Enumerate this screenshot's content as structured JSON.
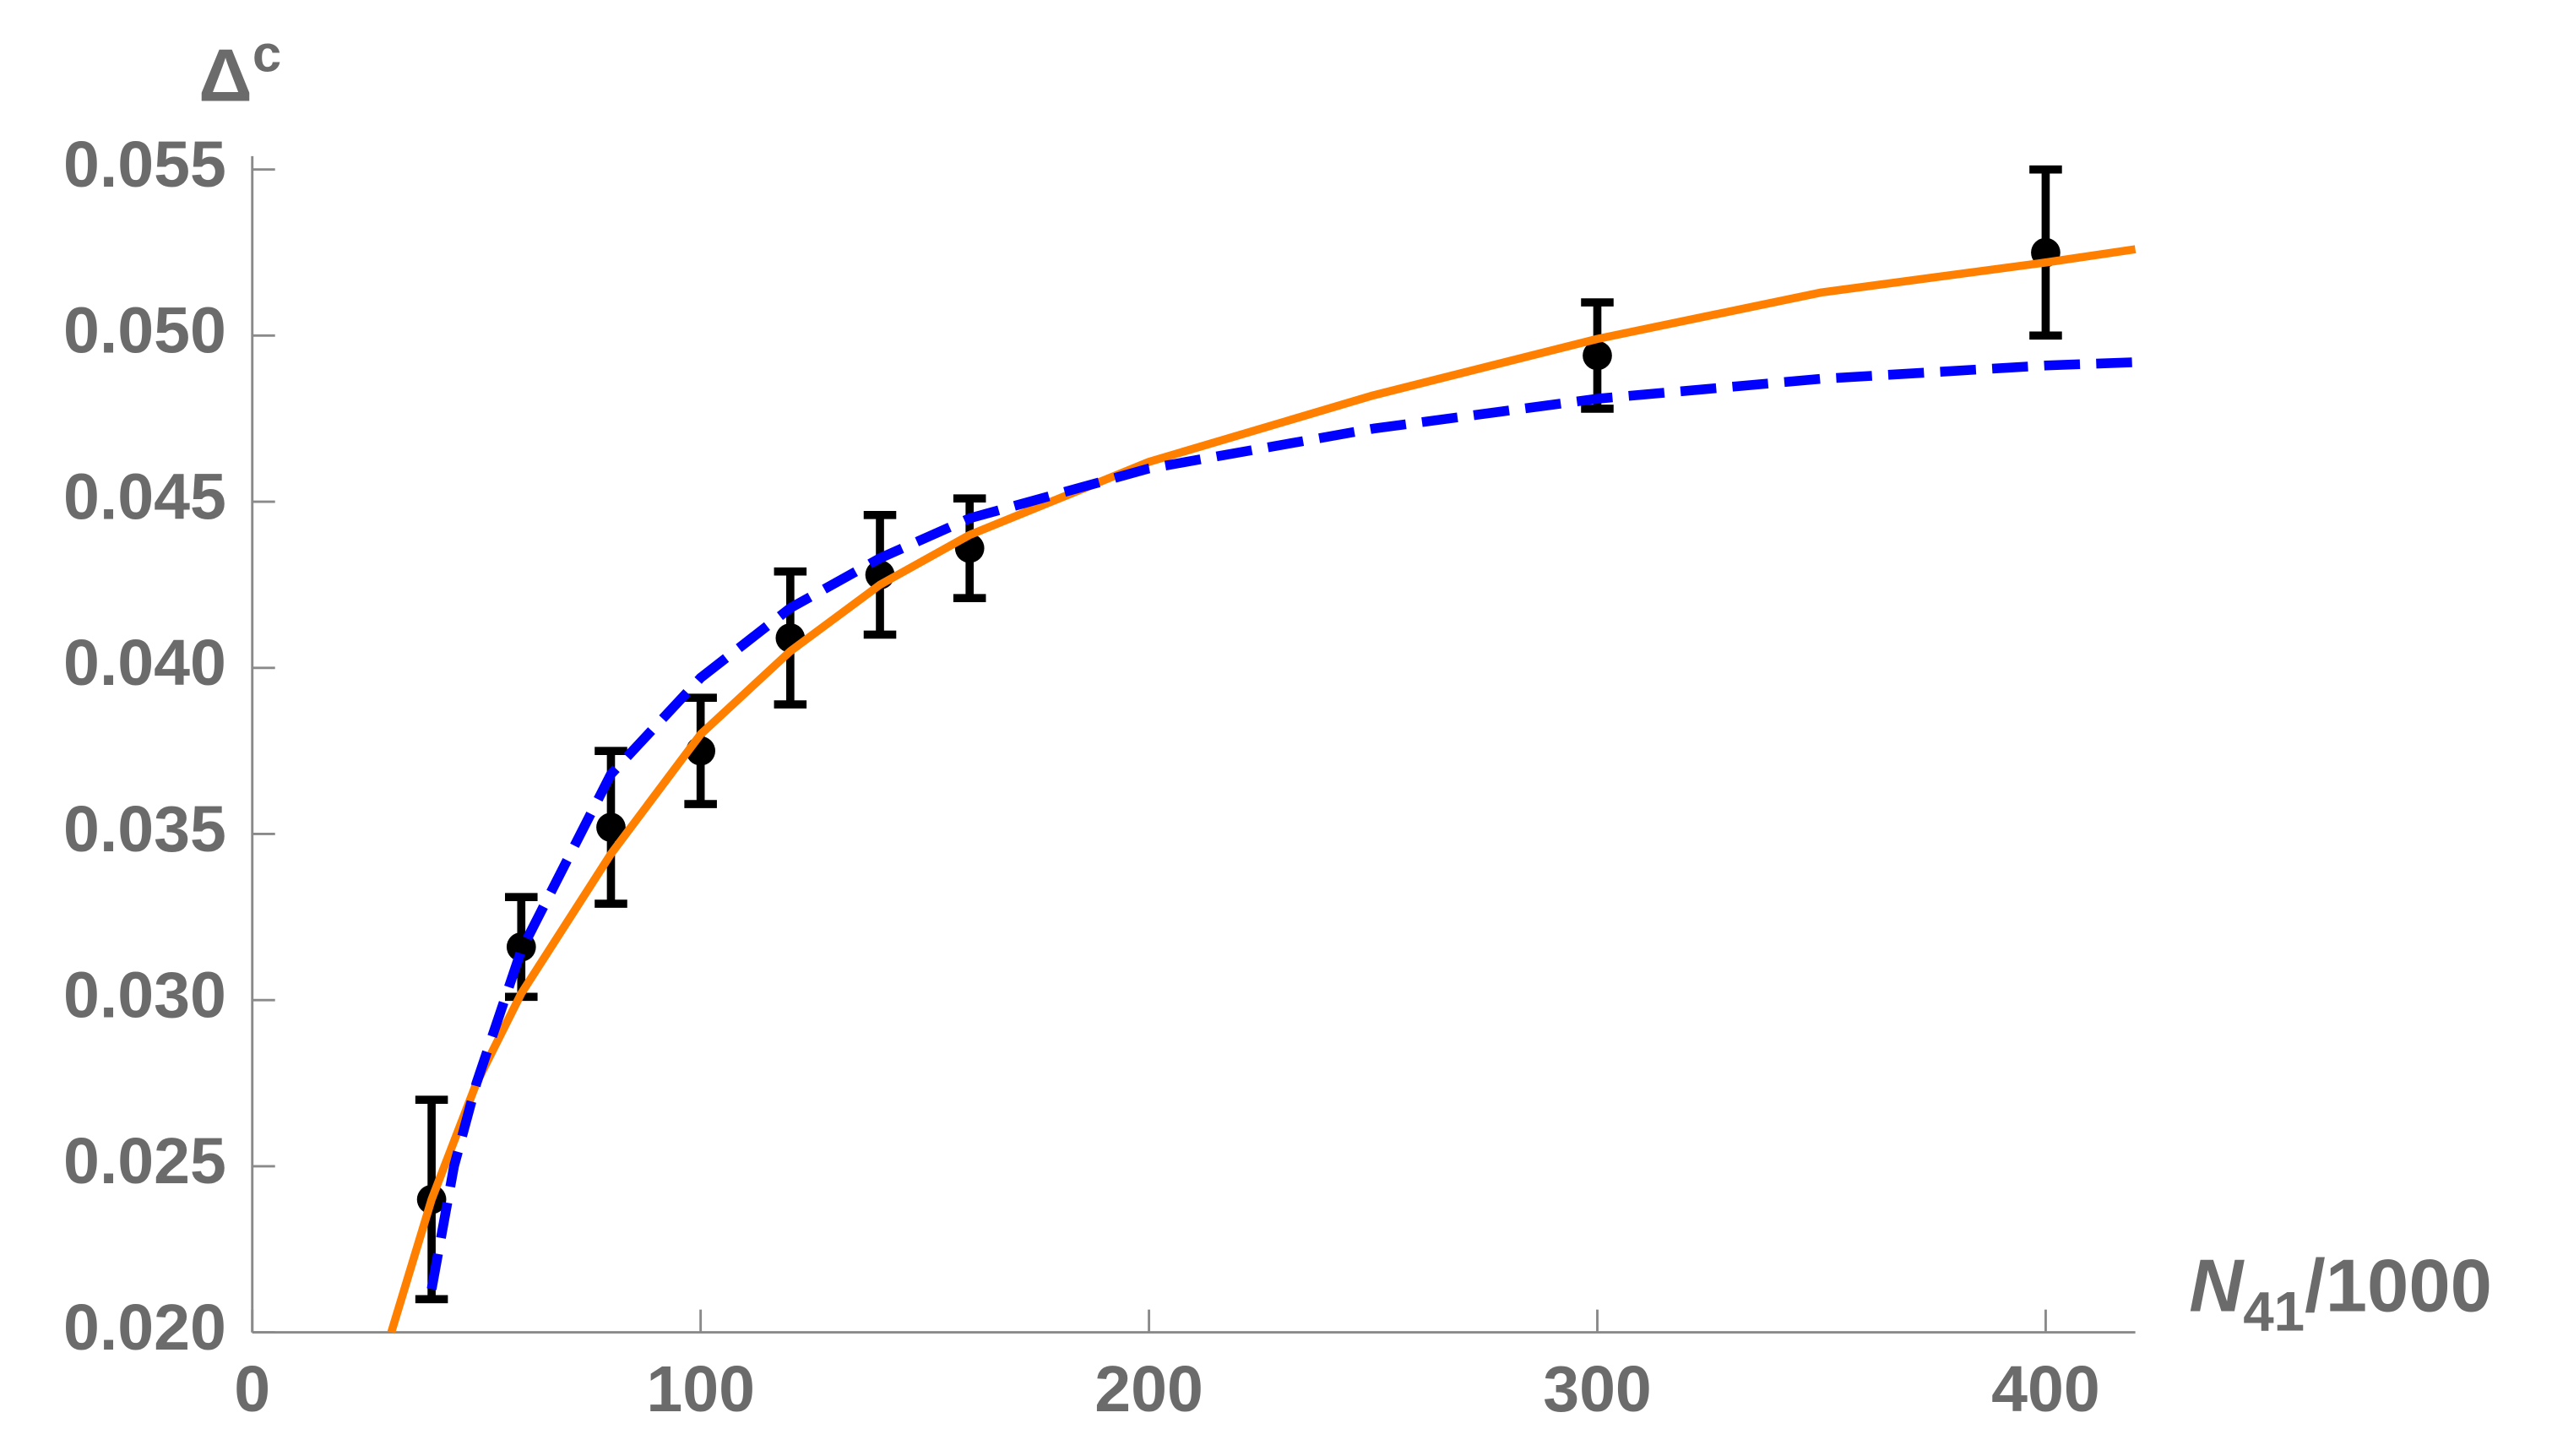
{
  "chart_data": {
    "type": "scatter",
    "xlabel": {
      "text": "N",
      "subscript": "41",
      "suffix": "/1000"
    },
    "ylabel": {
      "text": "Δ",
      "superscript": "c"
    },
    "xlim": [
      0,
      420
    ],
    "ylim": [
      0.02,
      0.0554
    ],
    "xticks": [
      0,
      100,
      200,
      300,
      400
    ],
    "yticks": [
      {
        "value": 0.02,
        "label": "0.020"
      },
      0.025,
      {
        "value": 0.03,
        "label": "0.030"
      },
      0.035,
      {
        "value": 0.04,
        "label": "0.040"
      },
      0.045,
      {
        "value": 0.05,
        "label": "0.050"
      },
      0.055
    ],
    "axis_color": "#8a8a8a",
    "series": [
      {
        "type": "errorbar",
        "color": "#000000",
        "x": [
          40,
          60,
          80,
          100,
          120,
          140,
          160,
          300,
          400
        ],
        "values": [
          0.024,
          0.0316,
          0.0352,
          0.0375,
          0.0409,
          0.0428,
          0.0436,
          0.0494,
          0.0525
        ],
        "errors": [
          0.003,
          0.0015,
          0.0023,
          0.0016,
          0.002,
          0.0018,
          0.0015,
          0.0016,
          0.0025
        ]
      },
      {
        "type": "line",
        "color": "#ff8000",
        "style": "solid",
        "x": [
          31,
          40,
          50,
          60,
          80,
          100,
          120,
          140,
          160,
          200,
          250,
          300,
          350,
          400,
          420
        ],
        "values": [
          0.02,
          0.024,
          0.0275,
          0.0302,
          0.0344,
          0.038,
          0.0405,
          0.0425,
          0.044,
          0.0462,
          0.0482,
          0.0499,
          0.0513,
          0.0522,
          0.0526
        ]
      },
      {
        "type": "line",
        "color": "#0000ff",
        "style": "dashed",
        "x": [
          40,
          45,
          50,
          60,
          80,
          100,
          120,
          140,
          160,
          200,
          250,
          300,
          350,
          400,
          420
        ],
        "values": [
          0.0213,
          0.025,
          0.0275,
          0.0315,
          0.0368,
          0.0397,
          0.0418,
          0.0433,
          0.0445,
          0.046,
          0.0472,
          0.0481,
          0.0487,
          0.0491,
          0.0492
        ]
      }
    ]
  }
}
